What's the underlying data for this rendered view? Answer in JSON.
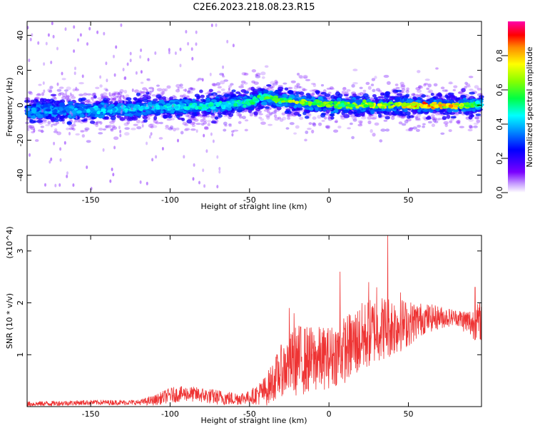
{
  "chart_data": [
    {
      "type": "heatmap",
      "title": "C2E6.2023.218.08.23.R15",
      "xlabel": "Height of straight line (km)",
      "ylabel": "Frequency (Hz)",
      "xlim": [
        -190,
        96
      ],
      "ylim": [
        -50,
        48
      ],
      "xticks": [
        "-150",
        "-100",
        "-50",
        "0",
        "50"
      ],
      "yticks": [
        "40",
        "20",
        "0",
        "-20",
        "-40"
      ],
      "colorbar": {
        "label": "Normalized spectral amplitude",
        "range": [
          0.0,
          1.0
        ],
        "ticks": [
          "0.0",
          "0.2",
          "0.4",
          "0.6",
          "0.8"
        ]
      },
      "ridge_center_hz": [
        {
          "x": -190,
          "y": -3
        },
        {
          "x": -150,
          "y": -3
        },
        {
          "x": -100,
          "y": -1
        },
        {
          "x": -70,
          "y": 0
        },
        {
          "x": -50,
          "y": 2
        },
        {
          "x": -40,
          "y": 5
        },
        {
          "x": -30,
          "y": 3
        },
        {
          "x": -10,
          "y": 1
        },
        {
          "x": 10,
          "y": 0
        },
        {
          "x": 50,
          "y": 0
        },
        {
          "x": 96,
          "y": 0
        }
      ],
      "ridge_peak_amplitude": [
        {
          "x": -190,
          "a": 0.4
        },
        {
          "x": -100,
          "a": 0.5
        },
        {
          "x": -50,
          "a": 0.55
        },
        {
          "x": -20,
          "a": 0.75
        },
        {
          "x": 10,
          "a": 0.7
        },
        {
          "x": 50,
          "a": 0.85
        },
        {
          "x": 65,
          "a": 0.95
        },
        {
          "x": 85,
          "a": 0.8
        },
        {
          "x": 96,
          "a": 0.5
        }
      ]
    },
    {
      "type": "line",
      "xlabel": "Height of straight line (km)",
      "ylabel": "SNR (10 * v/v)",
      "multiplier": "(x10^4)",
      "xlim": [
        -190,
        96
      ],
      "ylim": [
        0,
        3.3
      ],
      "xticks": [
        "-150",
        "-100",
        "-50",
        "0",
        "50"
      ],
      "yticks": [
        "3",
        "2",
        "1"
      ],
      "series": [
        {
          "color": "#ee3333",
          "envelope_mean": [
            {
              "x": -190,
              "y": 0.05
            },
            {
              "x": -150,
              "y": 0.08
            },
            {
              "x": -120,
              "y": 0.08
            },
            {
              "x": -110,
              "y": 0.12
            },
            {
              "x": -100,
              "y": 0.22
            },
            {
              "x": -90,
              "y": 0.25
            },
            {
              "x": -80,
              "y": 0.22
            },
            {
              "x": -70,
              "y": 0.18
            },
            {
              "x": -60,
              "y": 0.15
            },
            {
              "x": -50,
              "y": 0.18
            },
            {
              "x": -40,
              "y": 0.3
            },
            {
              "x": -30,
              "y": 0.7
            },
            {
              "x": -20,
              "y": 0.9
            },
            {
              "x": -10,
              "y": 0.9
            },
            {
              "x": 0,
              "y": 0.95
            },
            {
              "x": 10,
              "y": 1.1
            },
            {
              "x": 20,
              "y": 1.3
            },
            {
              "x": 30,
              "y": 1.5
            },
            {
              "x": 40,
              "y": 1.55
            },
            {
              "x": 50,
              "y": 1.6
            },
            {
              "x": 60,
              "y": 1.7
            },
            {
              "x": 70,
              "y": 1.72
            },
            {
              "x": 80,
              "y": 1.72
            },
            {
              "x": 90,
              "y": 1.6
            },
            {
              "x": 96,
              "y": 1.65
            }
          ],
          "noise_amplitude": [
            {
              "x": -190,
              "y": 0.05
            },
            {
              "x": -120,
              "y": 0.05
            },
            {
              "x": -100,
              "y": 0.15
            },
            {
              "x": -70,
              "y": 0.15
            },
            {
              "x": -50,
              "y": 0.12
            },
            {
              "x": -40,
              "y": 0.3
            },
            {
              "x": -20,
              "y": 0.7
            },
            {
              "x": 0,
              "y": 0.6
            },
            {
              "x": 20,
              "y": 0.7
            },
            {
              "x": 40,
              "y": 0.6
            },
            {
              "x": 60,
              "y": 0.3
            },
            {
              "x": 80,
              "y": 0.15
            },
            {
              "x": 96,
              "y": 0.4
            }
          ],
          "spikes": [
            {
              "x": 7,
              "y": 2.6
            },
            {
              "x": 25,
              "y": 2.4
            },
            {
              "x": 37,
              "y": 3.3
            },
            {
              "x": 30,
              "y": 2.3
            },
            {
              "x": 45,
              "y": 2.2
            },
            {
              "x": 92,
              "y": 2.3
            },
            {
              "x": -25,
              "y": 1.9
            },
            {
              "x": -22,
              "y": 1.8
            }
          ]
        }
      ]
    }
  ]
}
